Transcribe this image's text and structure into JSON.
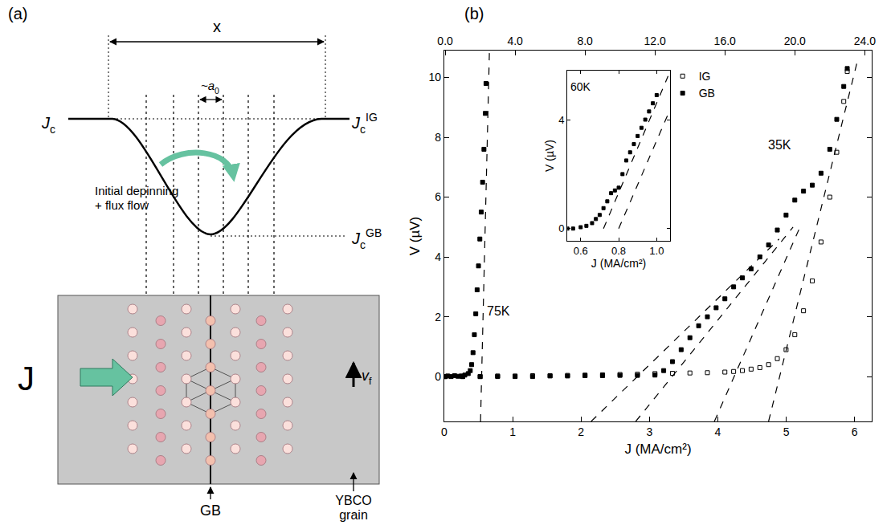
{
  "panel_a": {
    "label": "(a)",
    "width": "x",
    "spacing": {
      "main": "~a",
      "sub": "0"
    },
    "curve": {
      "main": "J",
      "sub": "c"
    },
    "curve_ig": {
      "main": "J",
      "sub": "c",
      "sup": "IG"
    },
    "curve_gb": {
      "main": "J",
      "sub": "c",
      "sup": "GB"
    },
    "arrow_text": [
      "Initial depinning",
      "+ flux flow"
    ],
    "current": "J",
    "velocity": {
      "main": "v",
      "sub": "f"
    },
    "boundary": "GB",
    "grain": [
      "YBCO",
      "grain"
    ]
  },
  "panel_b": {
    "label": "(b)"
  },
  "chart_data": [
    {
      "type": "scatter",
      "x_label": "J (MA/cm²)",
      "y_label": "V (µV)",
      "xlim": [
        0,
        6.25
      ],
      "xticks": [
        0,
        1,
        2,
        3,
        4,
        5,
        6
      ],
      "x2lim": [
        -0.05,
        24.4
      ],
      "x2ticks": [
        {
          "value": 0,
          "label": "0.0"
        },
        {
          "value": 4,
          "label": "4.0"
        },
        {
          "value": 8,
          "label": "8.0"
        },
        {
          "value": 12,
          "label": "12.0"
        },
        {
          "value": 16,
          "label": "16.0"
        },
        {
          "value": 20,
          "label": "20.0"
        },
        {
          "value": 24,
          "label": "24.0"
        }
      ],
      "ylim": [
        -1.5,
        10.9
      ],
      "yticks": [
        0,
        2,
        4,
        6,
        8,
        10
      ],
      "legend": "upper center",
      "annotations": [
        {
          "text": "75K",
          "x": 0.79,
          "y": 2.2
        },
        {
          "text": "35K",
          "x": 4.9,
          "y": 7.75
        }
      ],
      "series": [
        {
          "name": "IG",
          "marker": "square-open",
          "color": "#000000",
          "axis": "x2",
          "x": [
            0,
            1,
            2,
            3,
            4,
            5,
            6,
            7,
            8,
            9,
            10,
            11,
            12,
            13,
            14,
            15,
            16,
            16.5,
            17,
            17.5,
            18,
            18.5,
            19,
            19.5,
            20,
            20.5,
            21,
            21.5,
            22,
            22.4,
            22.8,
            23.0
          ],
          "values": [
            0,
            0,
            0,
            0.02,
            0.02,
            0.03,
            0.03,
            0.04,
            0.05,
            0.06,
            0.07,
            0.08,
            0.1,
            0.11,
            0.12,
            0.13,
            0.15,
            0.17,
            0.2,
            0.25,
            0.3,
            0.4,
            0.6,
            0.9,
            1.4,
            2.2,
            3.2,
            4.5,
            6,
            7.5,
            9.2,
            10.2
          ]
        },
        {
          "name": "GB",
          "marker": "square",
          "color": "#000000",
          "axis": "x2",
          "x": [
            0,
            1,
            2,
            3,
            4,
            5,
            6,
            7,
            8,
            9,
            10,
            11,
            12,
            12.5,
            13,
            13.5,
            14,
            14.5,
            15,
            15.5,
            16,
            16.5,
            17,
            17.5,
            18,
            18.5,
            19,
            19.5,
            20,
            20.5,
            21,
            21.5,
            22,
            22.4,
            22.8,
            23.0
          ],
          "values": [
            0,
            0,
            0,
            0,
            0,
            0,
            0.02,
            0.02,
            0.03,
            0.03,
            0.04,
            0.04,
            0.05,
            0.2,
            0.5,
            0.9,
            1.3,
            1.7,
            2.0,
            2.3,
            2.6,
            3.0,
            3.3,
            3.6,
            4.0,
            4.4,
            4.9,
            5.4,
            5.9,
            6.2,
            6.4,
            6.8,
            7.6,
            8.6,
            9.7,
            10.3
          ]
        },
        {
          "marker": "square",
          "color": "#000000",
          "x": [
            0,
            0.05,
            0.1,
            0.15,
            0.2,
            0.25,
            0.3,
            0.35,
            0.38,
            0.4,
            0.42,
            0.44,
            0.46,
            0.48,
            0.5,
            0.52,
            0.54,
            0.56,
            0.58,
            0.6,
            0.61
          ],
          "values": [
            0,
            0.02,
            0,
            0.03,
            0.01,
            0.02,
            0.05,
            0.1,
            0.2,
            0.4,
            0.8,
            1.4,
            2.1,
            2.9,
            3.7,
            4.6,
            5.5,
            6.5,
            7.6,
            8.8,
            9.8
          ]
        },
        {
          "type": "line",
          "line_style": "dashed",
          "color": "#000000",
          "x": [
            0.53,
            0.66
          ],
          "values": [
            -1.5,
            10.9
          ]
        },
        {
          "type": "line",
          "line_style": "dashed",
          "color": "#000000",
          "axis": "x2",
          "x": [
            8.35,
            19.1
          ],
          "values": [
            -1.5,
            4.6
          ]
        },
        {
          "type": "line",
          "line_style": "dashed",
          "color": "#000000",
          "axis": "x2",
          "x": [
            10.9,
            19.9
          ],
          "values": [
            -1.5,
            5.0
          ]
        },
        {
          "type": "line",
          "line_style": "dashed",
          "color": "#000000",
          "axis": "x2",
          "x": [
            15.4,
            20.3
          ],
          "values": [
            -1.5,
            5.0
          ]
        },
        {
          "type": "line",
          "line_style": "dashed",
          "color": "#000000",
          "axis": "x2",
          "x": [
            18.5,
            23.6
          ],
          "values": [
            -1.5,
            10.6
          ]
        }
      ]
    },
    {
      "type": "scatter",
      "x_label": "J (MA/cm²)",
      "y_label": "V (µV)",
      "xlim": [
        0.53,
        1.07
      ],
      "xticks": [
        0.6,
        0.8,
        {
          "value": 1,
          "label": "1.0"
        }
      ],
      "ylim": [
        -0.45,
        5.8
      ],
      "yticks": [
        0,
        4
      ],
      "annotations": [
        {
          "text": "60K",
          "x": 0.6,
          "y": 5.2
        }
      ],
      "series": [
        {
          "marker": "square",
          "color": "#000000",
          "x": [
            0.53,
            0.56,
            0.6,
            0.63,
            0.66,
            0.68,
            0.7,
            0.72,
            0.74,
            0.76,
            0.78,
            0.8,
            0.82,
            0.84,
            0.86,
            0.88,
            0.9,
            0.92,
            0.94,
            0.96,
            0.98,
            1.0
          ],
          "values": [
            0,
            0,
            0.05,
            0.1,
            0.2,
            0.35,
            0.5,
            0.75,
            1.0,
            1.3,
            1.4,
            1.5,
            2.0,
            2.5,
            2.8,
            3.1,
            3.4,
            3.7,
            4.0,
            4.3,
            4.6,
            4.9
          ]
        },
        {
          "type": "line",
          "line_style": "dashed",
          "color": "#000000",
          "x": [
            0.72,
            1.06
          ],
          "values": [
            0,
            5.6
          ]
        },
        {
          "type": "line",
          "line_style": "dashed",
          "color": "#000000",
          "x": [
            0.8,
            1.06
          ],
          "values": [
            0,
            4.2
          ]
        }
      ]
    }
  ]
}
